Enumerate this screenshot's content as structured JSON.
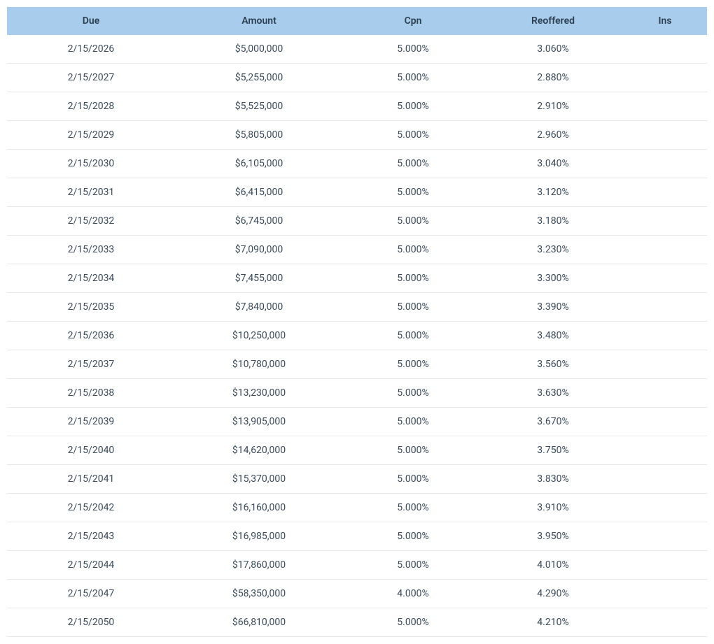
{
  "table": {
    "columns": [
      "Due",
      "Amount",
      "Cpn",
      "Reoffered",
      "Ins"
    ],
    "rows": [
      [
        "2/15/2026",
        "$5,000,000",
        "5.000%",
        "3.060%",
        ""
      ],
      [
        "2/15/2027",
        "$5,255,000",
        "5.000%",
        "2.880%",
        ""
      ],
      [
        "2/15/2028",
        "$5,525,000",
        "5.000%",
        "2.910%",
        ""
      ],
      [
        "2/15/2029",
        "$5,805,000",
        "5.000%",
        "2.960%",
        ""
      ],
      [
        "2/15/2030",
        "$6,105,000",
        "5.000%",
        "3.040%",
        ""
      ],
      [
        "2/15/2031",
        "$6,415,000",
        "5.000%",
        "3.120%",
        ""
      ],
      [
        "2/15/2032",
        "$6,745,000",
        "5.000%",
        "3.180%",
        ""
      ],
      [
        "2/15/2033",
        "$7,090,000",
        "5.000%",
        "3.230%",
        ""
      ],
      [
        "2/15/2034",
        "$7,455,000",
        "5.000%",
        "3.300%",
        ""
      ],
      [
        "2/15/2035",
        "$7,840,000",
        "5.000%",
        "3.390%",
        ""
      ],
      [
        "2/15/2036",
        "$10,250,000",
        "5.000%",
        "3.480%",
        ""
      ],
      [
        "2/15/2037",
        "$10,780,000",
        "5.000%",
        "3.560%",
        ""
      ],
      [
        "2/15/2038",
        "$13,230,000",
        "5.000%",
        "3.630%",
        ""
      ],
      [
        "2/15/2039",
        "$13,905,000",
        "5.000%",
        "3.670%",
        ""
      ],
      [
        "2/15/2040",
        "$14,620,000",
        "5.000%",
        "3.750%",
        ""
      ],
      [
        "2/15/2041",
        "$15,370,000",
        "5.000%",
        "3.830%",
        ""
      ],
      [
        "2/15/2042",
        "$16,160,000",
        "5.000%",
        "3.910%",
        ""
      ],
      [
        "2/15/2043",
        "$16,985,000",
        "5.000%",
        "3.950%",
        ""
      ],
      [
        "2/15/2044",
        "$17,860,000",
        "5.000%",
        "4.010%",
        ""
      ],
      [
        "2/15/2047",
        "$58,350,000",
        "4.000%",
        "4.290%",
        ""
      ],
      [
        "2/15/2050",
        "$66,810,000",
        "5.000%",
        "4.210%",
        ""
      ]
    ],
    "header_bg_color": "#a8cdec",
    "header_text_color": "#2c3e50",
    "body_text_color": "#3a4a5a",
    "border_color": "#e8e8e8",
    "font_size": 14,
    "column_widths": [
      "24%",
      "24%",
      "20%",
      "20%",
      "12%"
    ]
  }
}
